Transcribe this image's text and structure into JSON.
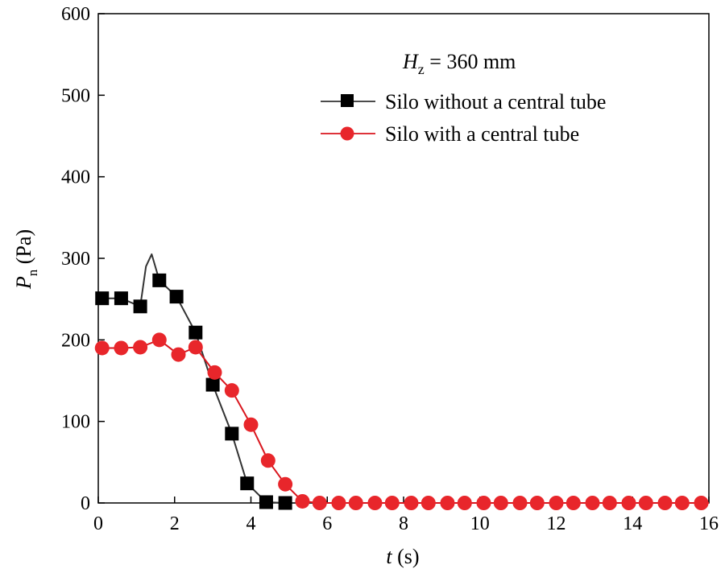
{
  "chart_data": {
    "type": "line",
    "title": "",
    "annotation": {
      "var": "H",
      "sub": "z",
      "text": " = 360 mm"
    },
    "xlabel": {
      "var": "t",
      "unit": " (s)"
    },
    "ylabel": {
      "var": "P",
      "sub": "n",
      "unit": " (Pa)"
    },
    "xlim": [
      0,
      16
    ],
    "ylim": [
      0,
      600
    ],
    "xticks": [
      0,
      2,
      4,
      6,
      8,
      10,
      12,
      14,
      16
    ],
    "yticks": [
      0,
      100,
      200,
      300,
      400,
      500,
      600
    ],
    "grid": false,
    "legend_position": "top-right",
    "series": [
      {
        "name": "Silo without a central tube",
        "color": "#333333",
        "marker_color": "#000000",
        "marker": "square",
        "line": [
          [
            0.1,
            251
          ],
          [
            0.6,
            251
          ],
          [
            1.1,
            241
          ],
          [
            1.25,
            290
          ],
          [
            1.4,
            305
          ],
          [
            1.6,
            273
          ],
          [
            2.05,
            253
          ],
          [
            2.55,
            209
          ],
          [
            3.0,
            145
          ],
          [
            3.5,
            85
          ],
          [
            3.9,
            24
          ],
          [
            4.4,
            1
          ],
          [
            4.9,
            0
          ],
          [
            5.35,
            0
          ],
          [
            16,
            0
          ]
        ],
        "points": [
          [
            0.1,
            251
          ],
          [
            0.6,
            251
          ],
          [
            1.1,
            241
          ],
          [
            1.6,
            273
          ],
          [
            2.05,
            253
          ],
          [
            2.55,
            209
          ],
          [
            3.0,
            145
          ],
          [
            3.5,
            85
          ],
          [
            3.9,
            24
          ],
          [
            4.4,
            1
          ],
          [
            4.9,
            0
          ]
        ]
      },
      {
        "name": "Silo with a central tube",
        "color": "#d9161e",
        "marker_color": "#e8262b",
        "marker": "circle",
        "line": [
          [
            0.1,
            190
          ],
          [
            0.6,
            190
          ],
          [
            1.1,
            191
          ],
          [
            1.6,
            200
          ],
          [
            2.1,
            182
          ],
          [
            2.55,
            191
          ],
          [
            3.05,
            160
          ],
          [
            3.5,
            138
          ],
          [
            4.0,
            96
          ],
          [
            4.45,
            52
          ],
          [
            4.9,
            23
          ],
          [
            5.35,
            2
          ],
          [
            5.8,
            0
          ],
          [
            16,
            0
          ]
        ],
        "points": [
          [
            0.1,
            190
          ],
          [
            0.6,
            190
          ],
          [
            1.1,
            191
          ],
          [
            1.6,
            200
          ],
          [
            2.1,
            182
          ],
          [
            2.55,
            191
          ],
          [
            3.05,
            160
          ],
          [
            3.5,
            138
          ],
          [
            4.0,
            96
          ],
          [
            4.45,
            52
          ],
          [
            4.9,
            23
          ],
          [
            5.35,
            2
          ],
          [
            5.8,
            0
          ],
          [
            6.3,
            0
          ],
          [
            6.75,
            0
          ],
          [
            7.25,
            0
          ],
          [
            7.7,
            0
          ],
          [
            8.2,
            0
          ],
          [
            8.65,
            0
          ],
          [
            9.15,
            0
          ],
          [
            9.6,
            0
          ],
          [
            10.1,
            0
          ],
          [
            10.55,
            0
          ],
          [
            11.05,
            0
          ],
          [
            11.5,
            0
          ],
          [
            12.0,
            0
          ],
          [
            12.45,
            0
          ],
          [
            12.95,
            0
          ],
          [
            13.4,
            0
          ],
          [
            13.9,
            0
          ],
          [
            14.35,
            0
          ],
          [
            14.85,
            0
          ],
          [
            15.3,
            0
          ],
          [
            15.8,
            0
          ]
        ]
      }
    ]
  }
}
